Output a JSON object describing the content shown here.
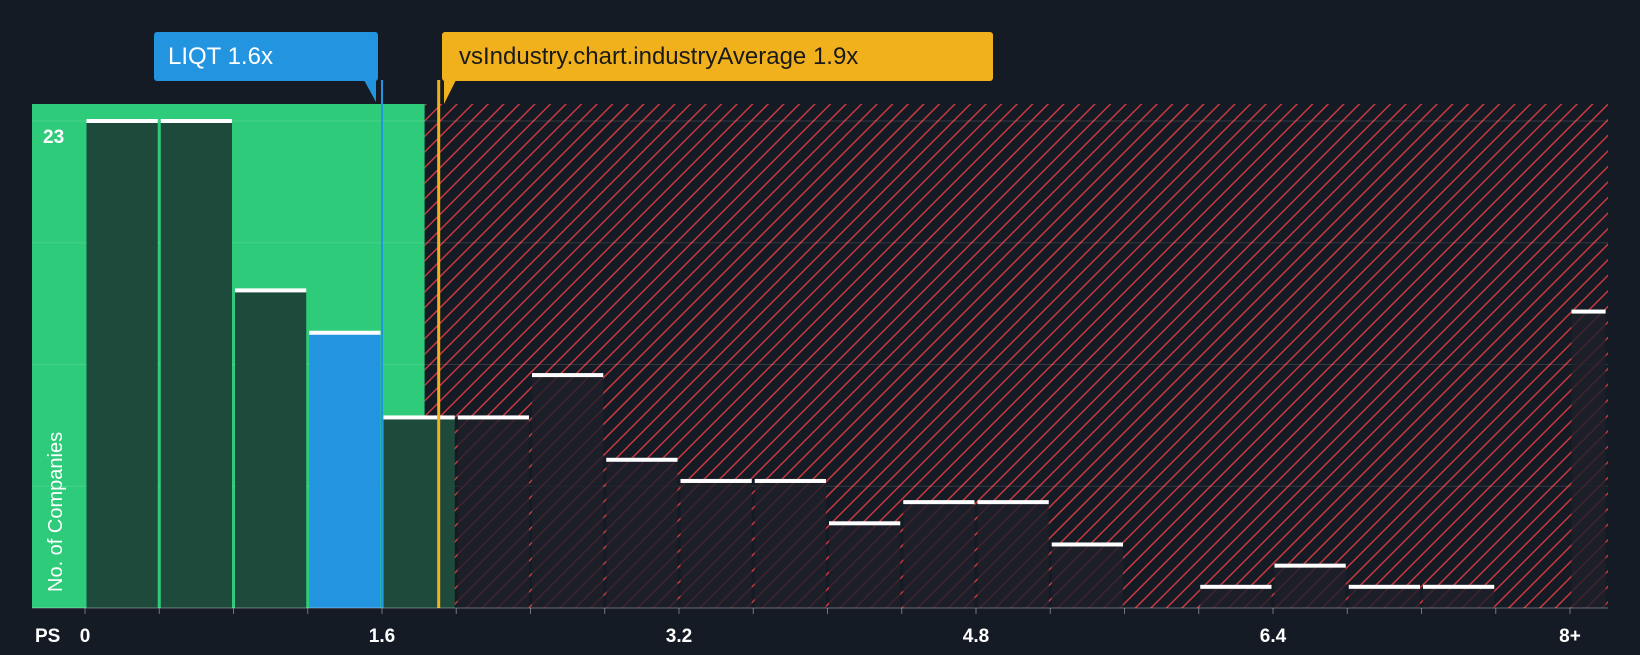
{
  "colors": {
    "background": "#151b24",
    "fair_zone": "#2ecc7a",
    "fair_bar": "#1e4a3c",
    "highlight_bar": "#2394e0",
    "expensive_hatch": "#c8383d",
    "expensive_bar": "#1f222d",
    "industry_line": "#f0b11c",
    "bar_cap": "#ffffff",
    "tick_text": "#ffffff"
  },
  "chart_data": {
    "type": "bar",
    "x_label": "PS",
    "y_label": "No. of Companies",
    "y_max_label": "23",
    "ylim": [
      0,
      23
    ],
    "x_range": [
      0,
      8.2
    ],
    "x_ticks": [
      {
        "value": 0,
        "label": "0"
      },
      {
        "value": 1.6,
        "label": "1.6"
      },
      {
        "value": 3.2,
        "label": "3.2"
      },
      {
        "value": 4.8,
        "label": "4.8"
      },
      {
        "value": 6.4,
        "label": "6.4"
      },
      {
        "value": 8.0,
        "label": "8+"
      }
    ],
    "bins": [
      {
        "start": 0.0,
        "end": 0.4,
        "count": 23
      },
      {
        "start": 0.4,
        "end": 0.8,
        "count": 23
      },
      {
        "start": 0.8,
        "end": 1.2,
        "count": 15
      },
      {
        "start": 1.2,
        "end": 1.6,
        "count": 13,
        "highlight": true
      },
      {
        "start": 1.6,
        "end": 2.0,
        "count": 9
      },
      {
        "start": 2.0,
        "end": 2.4,
        "count": 9
      },
      {
        "start": 2.4,
        "end": 2.8,
        "count": 11
      },
      {
        "start": 2.8,
        "end": 3.2,
        "count": 7
      },
      {
        "start": 3.2,
        "end": 3.6,
        "count": 6
      },
      {
        "start": 3.6,
        "end": 4.0,
        "count": 6
      },
      {
        "start": 4.0,
        "end": 4.4,
        "count": 4
      },
      {
        "start": 4.4,
        "end": 4.8,
        "count": 5
      },
      {
        "start": 4.8,
        "end": 5.2,
        "count": 5
      },
      {
        "start": 5.2,
        "end": 5.6,
        "count": 3
      },
      {
        "start": 5.6,
        "end": 6.0,
        "count": 0
      },
      {
        "start": 6.0,
        "end": 6.4,
        "count": 1
      },
      {
        "start": 6.4,
        "end": 6.8,
        "count": 2
      },
      {
        "start": 6.8,
        "end": 7.2,
        "count": 1
      },
      {
        "start": 7.2,
        "end": 7.6,
        "count": 1
      },
      {
        "start": 7.6,
        "end": 8.0,
        "count": 0
      },
      {
        "start": 8.0,
        "end": 8.2,
        "count": 14
      }
    ],
    "fair_value_limit": 1.83,
    "company": {
      "ticker": "LIQT",
      "value": 1.6,
      "label": "LIQT 1.6x"
    },
    "industry": {
      "value": 1.9,
      "label": "vsIndustry.chart.industryAverage 1.9x"
    }
  }
}
